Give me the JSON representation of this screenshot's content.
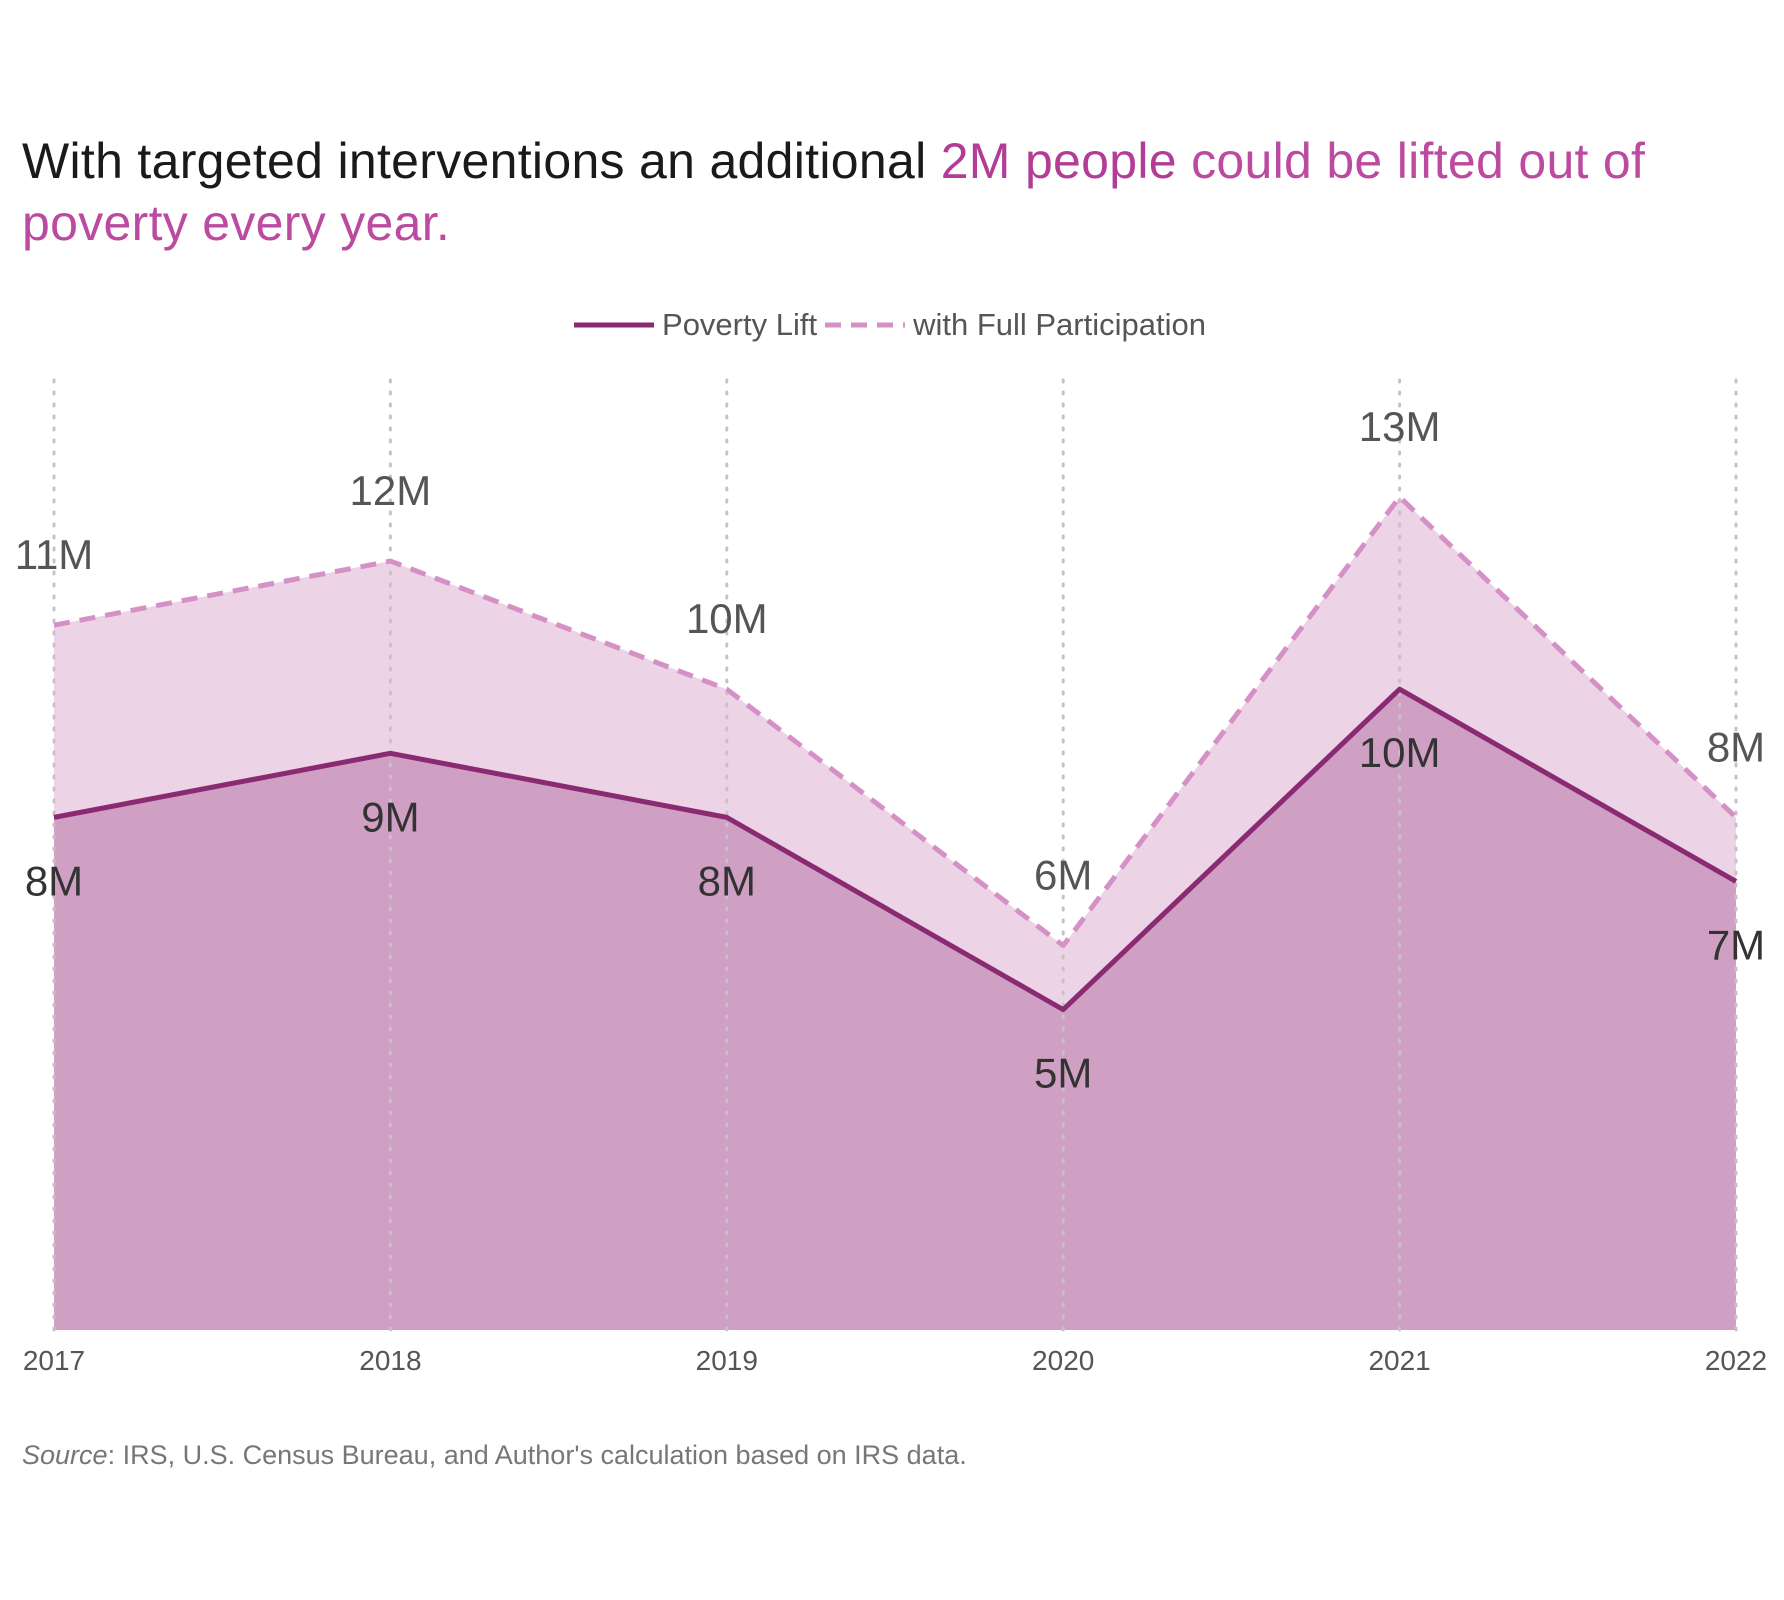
{
  "title": {
    "part1": "With targeted interventions an additional ",
    "highlight_strong": "2M people",
    "part2": " could be lifted out of poverty every year."
  },
  "legend": {
    "items": [
      {
        "label": "Poverty Lift",
        "style": "solid",
        "color": "#8a2a72"
      },
      {
        "label": "with Full Participation",
        "style": "dashed",
        "color": "#d590c5"
      }
    ]
  },
  "source": {
    "label": "Source",
    "text": ": IRS, U.S. Census Bureau, and Author's calculation based on IRS data."
  },
  "colors": {
    "poverty_line": "#8a2a72",
    "poverty_fill": "#cf9fc4",
    "full_line": "#d590c5",
    "full_fill": "#edd3e6",
    "grid": "#c9c0c9",
    "label_dark": "#333333",
    "label_gray": "#555555",
    "tick": "#555555"
  },
  "chart_data": {
    "type": "area",
    "x": [
      "2017",
      "2018",
      "2019",
      "2020",
      "2021",
      "2022"
    ],
    "series": [
      {
        "name": "Poverty Lift",
        "values": [
          8,
          9,
          8,
          5,
          10,
          7
        ],
        "labels": [
          "8M",
          "9M",
          "8M",
          "5M",
          "10M",
          "7M"
        ]
      },
      {
        "name": "with Full Participation",
        "values": [
          11,
          12,
          10,
          6,
          13,
          8
        ],
        "labels": [
          "11M",
          "12M",
          "10M",
          "6M",
          "13M",
          "8M"
        ]
      }
    ],
    "ylim": [
      0,
      15
    ],
    "grid": "vertical-dotted",
    "legend_position": "top-center",
    "xlabel": "",
    "ylabel": ""
  }
}
